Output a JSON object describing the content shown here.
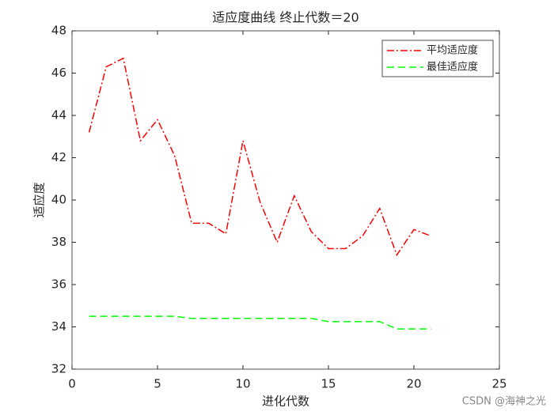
{
  "chart_data": {
    "type": "line",
    "title": "适应度曲线  终止代数＝20",
    "x_label": "进化代数",
    "y_label": "适应度",
    "x": [
      1,
      2,
      3,
      4,
      5,
      6,
      7,
      8,
      9,
      10,
      11,
      12,
      13,
      14,
      15,
      16,
      17,
      18,
      19,
      20,
      21
    ],
    "series": [
      {
        "name": "平均适应度",
        "color": "#ff0000",
        "dash": "dashdot",
        "values": [
          43.2,
          46.3,
          46.7,
          42.8,
          43.8,
          42.1,
          38.9,
          38.9,
          38.4,
          42.8,
          39.9,
          38.0,
          40.2,
          38.5,
          37.7,
          37.7,
          38.3,
          39.6,
          37.4,
          38.6,
          38.3
        ]
      },
      {
        "name": "最佳适应度",
        "color": "#00ff00",
        "dash": "dashed",
        "values": [
          34.5,
          34.5,
          34.5,
          34.5,
          34.5,
          34.5,
          34.4,
          34.4,
          34.4,
          34.4,
          34.4,
          34.4,
          34.4,
          34.4,
          34.25,
          34.25,
          34.25,
          34.25,
          33.9,
          33.9,
          33.9
        ]
      }
    ],
    "xlim": [
      0,
      25
    ],
    "xticks": [
      0,
      5,
      10,
      15,
      20,
      25
    ],
    "ylim": [
      32,
      48
    ],
    "yticks": [
      32,
      34,
      36,
      38,
      40,
      42,
      44,
      46,
      48
    ],
    "legend": "northeast",
    "grid": false
  },
  "watermark": "CSDN @海神之光"
}
